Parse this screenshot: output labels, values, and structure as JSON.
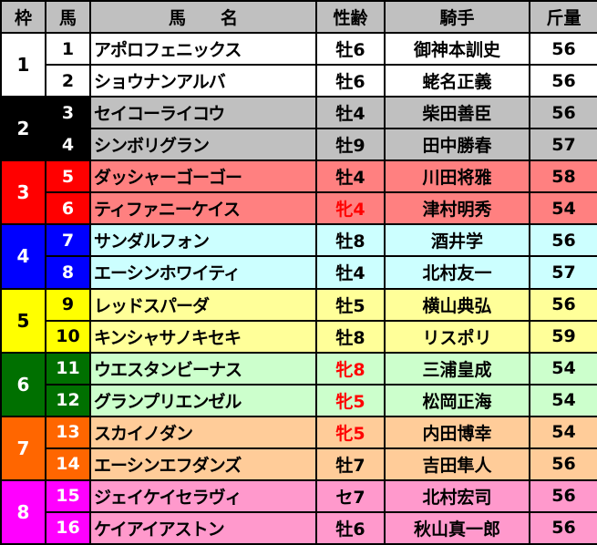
{
  "headers": {
    "waku": "枠",
    "umaban": "馬",
    "name": "馬　　名",
    "sexage": "性齢",
    "jockey": "騎手",
    "weight": "斤量"
  },
  "waku_colors": {
    "1": {
      "bg": "#ffffff",
      "fg": "#000000",
      "row": "#ffffff"
    },
    "2": {
      "bg": "#000000",
      "fg": "#ffffff",
      "row": "#c0c0c0"
    },
    "3": {
      "bg": "#ff0000",
      "fg": "#ffffff",
      "row": "#ff8080"
    },
    "4": {
      "bg": "#0000ff",
      "fg": "#ffffff",
      "row": "#ccffff"
    },
    "5": {
      "bg": "#ffff00",
      "fg": "#000000",
      "row": "#ffff99"
    },
    "6": {
      "bg": "#007000",
      "fg": "#ffffff",
      "row": "#ccffcc"
    },
    "7": {
      "bg": "#ff6600",
      "fg": "#ffffff",
      "row": "#ffcc99"
    },
    "8": {
      "bg": "#ff00ff",
      "fg": "#ffffff",
      "row": "#ff99cc"
    }
  },
  "horses": [
    {
      "waku": "1",
      "umaban": "1",
      "name": "アポロフェニックス",
      "sexage": "牡6",
      "jockey": "御神本訓史",
      "weight": "56",
      "mare": false
    },
    {
      "waku": "1",
      "umaban": "2",
      "name": "ショウナンアルバ",
      "sexage": "牡6",
      "jockey": "蛯名正義",
      "weight": "56",
      "mare": false
    },
    {
      "waku": "2",
      "umaban": "3",
      "name": "セイコーライコウ",
      "sexage": "牡4",
      "jockey": "柴田善臣",
      "weight": "56",
      "mare": false
    },
    {
      "waku": "2",
      "umaban": "4",
      "name": "シンボリグラン",
      "sexage": "牡9",
      "jockey": "田中勝春",
      "weight": "57",
      "mare": false
    },
    {
      "waku": "3",
      "umaban": "5",
      "name": "ダッシャーゴーゴー",
      "sexage": "牡4",
      "jockey": "川田将雅",
      "weight": "58",
      "mare": false
    },
    {
      "waku": "3",
      "umaban": "6",
      "name": "ティファニーケイス",
      "sexage": "牝4",
      "jockey": "津村明秀",
      "weight": "54",
      "mare": true
    },
    {
      "waku": "4",
      "umaban": "7",
      "name": "サンダルフォン",
      "sexage": "牡8",
      "jockey": "酒井学",
      "weight": "56",
      "mare": false
    },
    {
      "waku": "4",
      "umaban": "8",
      "name": "エーシンホワイティ",
      "sexage": "牡4",
      "jockey": "北村友一",
      "weight": "57",
      "mare": false
    },
    {
      "waku": "5",
      "umaban": "9",
      "name": "レッドスパーダ",
      "sexage": "牡5",
      "jockey": "横山典弘",
      "weight": "56",
      "mare": false
    },
    {
      "waku": "5",
      "umaban": "10",
      "name": "キンシャサノキセキ",
      "sexage": "牡8",
      "jockey": "リスポリ",
      "weight": "59",
      "mare": false
    },
    {
      "waku": "6",
      "umaban": "11",
      "name": "ウエスタンビーナス",
      "sexage": "牝8",
      "jockey": "三浦皇成",
      "weight": "54",
      "mare": true
    },
    {
      "waku": "6",
      "umaban": "12",
      "name": "グランプリエンゼル",
      "sexage": "牝5",
      "jockey": "松岡正海",
      "weight": "54",
      "mare": true
    },
    {
      "waku": "7",
      "umaban": "13",
      "name": "スカイノダン",
      "sexage": "牝5",
      "jockey": "内田博幸",
      "weight": "54",
      "mare": true
    },
    {
      "waku": "7",
      "umaban": "14",
      "name": "エーシンエフダンズ",
      "sexage": "牡7",
      "jockey": "吉田隼人",
      "weight": "56",
      "mare": false
    },
    {
      "waku": "8",
      "umaban": "15",
      "name": "ジェイケイセラヴィ",
      "sexage": "セ7",
      "jockey": "北村宏司",
      "weight": "56",
      "mare": false
    },
    {
      "waku": "8",
      "umaban": "16",
      "name": "ケイアイアストン",
      "sexage": "牡6",
      "jockey": "秋山真一郎",
      "weight": "56",
      "mare": false
    }
  ]
}
